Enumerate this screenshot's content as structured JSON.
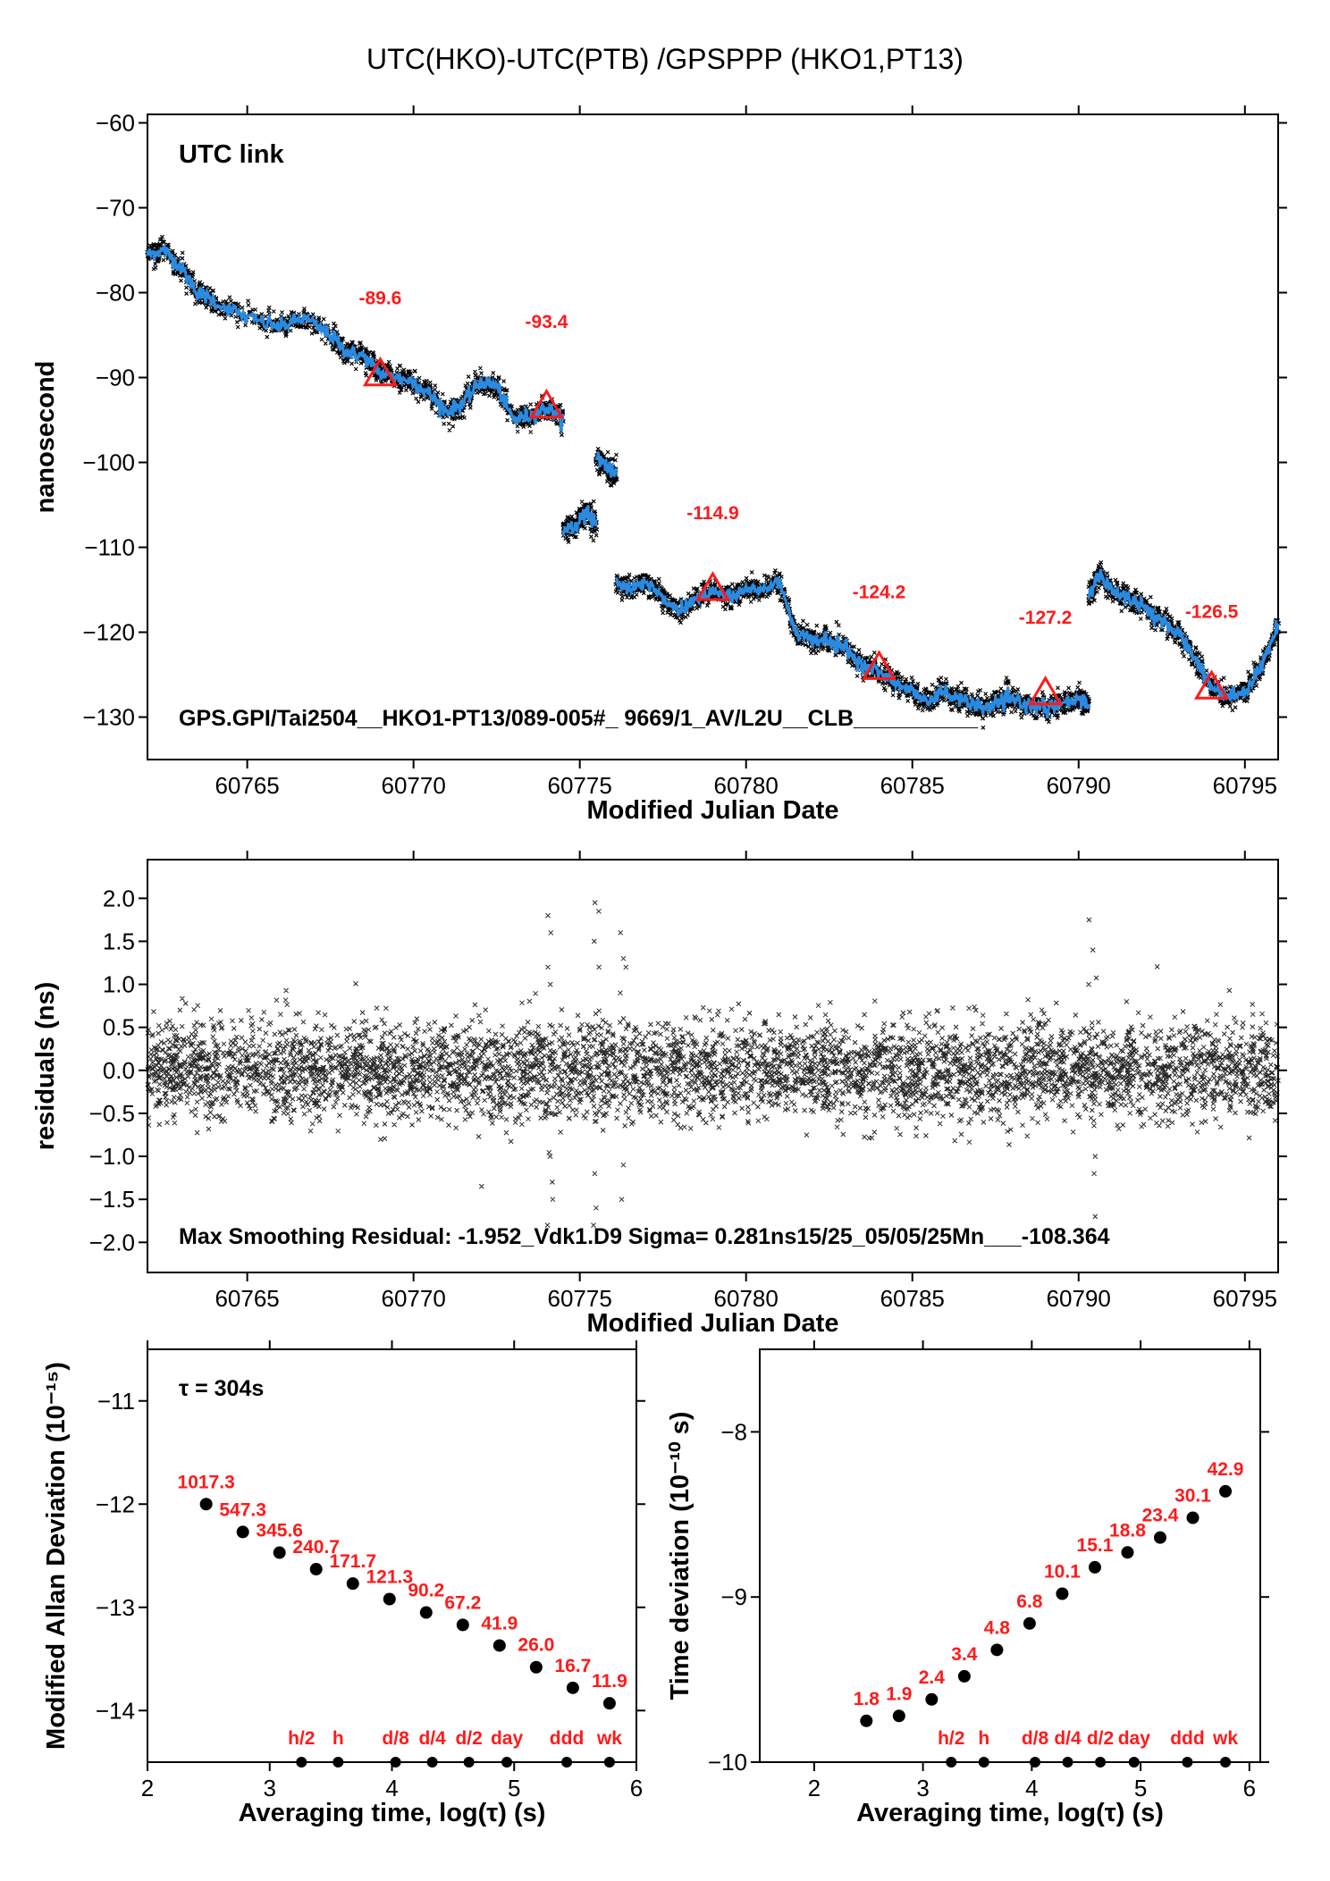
{
  "title": "UTC(HKO)-UTC(PTB)  /GPSPPP  (HKO1,PT13)",
  "chart_data": [
    {
      "type": "line",
      "name": "top",
      "xlabel": "Modified Julian Date",
      "ylabel": "nanosecond",
      "xlim": [
        60762,
        60796
      ],
      "ylim": [
        -135,
        -59
      ],
      "xticks": [
        60765,
        60770,
        60775,
        60780,
        60785,
        60790,
        60795
      ],
      "yticks": [
        -60,
        -70,
        -80,
        -90,
        -100,
        -110,
        -120,
        -130
      ],
      "legend_label": "UTC link",
      "legend_color": "#6b8e23",
      "annotation": "GPS.GPI/Tai2504__HKO1-PT13/089-005#_  9669/1_AV/L2U__CLB__________",
      "series": [
        {
          "x": [
            60762.0,
            60762.5,
            60763.0,
            60763.5,
            60764.0,
            60765.0,
            60766.0,
            60766.7,
            60767.5,
            60768.0,
            60768.5,
            60769.0,
            60769.5,
            60770.0,
            60770.5,
            60771.0,
            60771.5,
            60772.0,
            60772.5,
            60773.0,
            60773.5,
            60774.0,
            60774.5
          ]
        },
        {
          "y": [
            -75.5,
            -75.0,
            -77.0,
            -80.0,
            -81.0,
            -83.0,
            -84.0,
            -83.0,
            -85.0,
            -87.0,
            -87.5,
            -89.5,
            -90.0,
            -90.5,
            -92.0,
            -94.0,
            -93.0,
            -90.5,
            -91.0,
            -95.0,
            -94.5,
            -93.5,
            -95.0
          ]
        }
      ],
      "segments": [
        {
          "x": [
            60762.0,
            60762.5,
            60763.0,
            60763.5,
            60764.0,
            60765.0,
            60766.0,
            60766.7,
            60767.5,
            60768.0,
            60768.5,
            60769.0,
            60769.5,
            60770.0,
            60770.5,
            60771.0,
            60771.5,
            60772.0,
            60772.5,
            60773.0,
            60773.5,
            60774.0,
            60774.5
          ],
          "y": [
            -75.5,
            -75.0,
            -77.0,
            -80.0,
            -81.0,
            -83.0,
            -84.0,
            -83.0,
            -85.0,
            -87.0,
            -87.5,
            -89.5,
            -90.0,
            -90.5,
            -92.0,
            -94.0,
            -93.0,
            -90.5,
            -91.0,
            -95.0,
            -94.5,
            -93.5,
            -95.0
          ]
        },
        {
          "x": [
            60774.5,
            60774.9,
            60775.2,
            60775.5
          ],
          "y": [
            -108.0,
            -107.5,
            -106.0,
            -107.5
          ]
        },
        {
          "x": [
            60775.5,
            60775.8,
            60776.1
          ],
          "y": [
            -99.0,
            -100.5,
            -101.5
          ]
        },
        {
          "x": [
            60776.1,
            60776.5,
            60777.0,
            60777.5,
            60778.0,
            60778.5,
            60779.0,
            60779.5,
            60780.0,
            60780.5,
            60781.0,
            60781.5,
            60782.0,
            60782.5,
            60783.0,
            60783.5,
            60784.0,
            60784.5,
            60785.0,
            60785.5,
            60786.0,
            60786.5,
            60787.0,
            60787.5,
            60788.0,
            60788.5,
            60789.0,
            60789.5,
            60790.0,
            60790.3
          ],
          "y": [
            -114.0,
            -115.0,
            -114.0,
            -116.0,
            -117.5,
            -116.0,
            -115.0,
            -116.0,
            -115.0,
            -115.0,
            -114.0,
            -120.0,
            -121.0,
            -121.0,
            -122.0,
            -124.0,
            -124.5,
            -126.0,
            -127.0,
            -128.0,
            -127.0,
            -128.0,
            -129.0,
            -128.5,
            -128.0,
            -128.5,
            -129.0,
            -128.5,
            -128.0,
            -128.5
          ]
        },
        {
          "x": [
            60790.3,
            60790.6,
            60791.0,
            60791.5,
            60792.0,
            60792.5,
            60793.0,
            60793.5,
            60794.0,
            60794.5,
            60795.0,
            60795.5,
            60796.0
          ],
          "y": [
            -116.0,
            -113.0,
            -115.0,
            -116.0,
            -117.0,
            -119.0,
            -120.0,
            -123.0,
            -126.5,
            -127.5,
            -127.0,
            -124.0,
            -119.0
          ]
        }
      ],
      "markers": [
        {
          "x": 60769.0,
          "y": -89.6,
          "label": "-89.6"
        },
        {
          "x": 60774.0,
          "y": -93.4,
          "label": "-93.4"
        },
        {
          "x": 60779.0,
          "y": -114.9,
          "label": "-114.9"
        },
        {
          "x": 60784.0,
          "y": -124.2,
          "label": "-124.2"
        },
        {
          "x": 60789.0,
          "y": -127.2,
          "label": "-127.2"
        },
        {
          "x": 60794.0,
          "y": -126.5,
          "label": "-126.5"
        }
      ]
    },
    {
      "type": "scatter",
      "name": "residuals",
      "xlabel": "Modified Julian Date",
      "ylabel": "residuals (ns)",
      "xlim": [
        60762,
        60796
      ],
      "ylim": [
        -2.35,
        2.45
      ],
      "xticks": [
        60765,
        60770,
        60775,
        60780,
        60785,
        60790,
        60795
      ],
      "yticks": [
        2.0,
        1.5,
        1.0,
        0.5,
        0.0,
        -0.5,
        -1.0,
        -1.5,
        -2.0
      ],
      "ytick_labels": [
        "2.0",
        "1.5",
        "1.0",
        "0.5",
        "0.0",
        "−0.5",
        "−1.0",
        "−1.5",
        "−2.0"
      ],
      "sigma": 0.281,
      "annotation": "Max Smoothing Residual: -1.952_Vdk1.D9  Sigma= 0.281ns15/25_05/05/25Mn___-108.364"
    },
    {
      "type": "scatter",
      "name": "mdev",
      "xlabel": "Averaging time, log(τ) (s)",
      "ylabel": "Modified Allan Deviation (10⁻¹⁵)",
      "xlim": [
        2,
        6
      ],
      "ylim": [
        -14.5,
        -10.5
      ],
      "xticks": [
        2,
        3,
        4,
        5,
        6
      ],
      "yticks": [
        -11,
        -12,
        -13,
        -14
      ],
      "tau_note": "τ = 304s",
      "x": [
        2.48,
        2.78,
        3.08,
        3.38,
        3.68,
        3.98,
        4.28,
        4.58,
        4.88,
        5.18,
        5.48,
        5.78
      ],
      "y": [
        -12.0,
        -12.27,
        -12.47,
        -12.63,
        -12.77,
        -12.92,
        -13.05,
        -13.17,
        -13.37,
        -13.58,
        -13.78,
        -13.93
      ],
      "labels": [
        "1017.3",
        "547.3",
        "345.6",
        "240.7",
        "171.7",
        "121.3",
        "90.2",
        "67.2",
        "41.9",
        "26.0",
        "16.7",
        "11.9"
      ],
      "reference_marks": [
        {
          "x": 3.26,
          "label": "h/2"
        },
        {
          "x": 3.56,
          "label": "h"
        },
        {
          "x": 4.03,
          "label": "d/8"
        },
        {
          "x": 4.33,
          "label": "d/4"
        },
        {
          "x": 4.63,
          "label": "d/2"
        },
        {
          "x": 4.94,
          "label": "day"
        },
        {
          "x": 5.43,
          "label": "ddd"
        },
        {
          "x": 5.78,
          "label": "wk"
        }
      ]
    },
    {
      "type": "scatter",
      "name": "tdev",
      "xlabel": "Averaging time, log(τ) (s)",
      "ylabel": "Time deviation (10⁻¹⁰ s)",
      "xlim": [
        1.5,
        6.1
      ],
      "ylim": [
        -10,
        -7.5
      ],
      "xticks": [
        2,
        3,
        4,
        5,
        6
      ],
      "yticks": [
        -8,
        -9,
        -10
      ],
      "x": [
        2.48,
        2.78,
        3.08,
        3.38,
        3.68,
        3.98,
        4.28,
        4.58,
        4.88,
        5.18,
        5.48,
        5.78
      ],
      "y": [
        -9.75,
        -9.72,
        -9.62,
        -9.48,
        -9.32,
        -9.16,
        -8.98,
        -8.82,
        -8.73,
        -8.64,
        -8.52,
        -8.36
      ],
      "labels": [
        "1.8",
        "1.9",
        "2.4",
        "3.4",
        "4.8",
        "6.8",
        "10.1",
        "15.1",
        "18.8",
        "23.4",
        "30.1",
        "42.9"
      ],
      "reference_marks": [
        {
          "x": 3.26,
          "label": "h/2"
        },
        {
          "x": 3.56,
          "label": "h"
        },
        {
          "x": 4.03,
          "label": "d/8"
        },
        {
          "x": 4.33,
          "label": "d/4"
        },
        {
          "x": 4.63,
          "label": "d/2"
        },
        {
          "x": 4.94,
          "label": "day"
        },
        {
          "x": 5.43,
          "label": "ddd"
        },
        {
          "x": 5.78,
          "label": "wk"
        }
      ]
    }
  ]
}
